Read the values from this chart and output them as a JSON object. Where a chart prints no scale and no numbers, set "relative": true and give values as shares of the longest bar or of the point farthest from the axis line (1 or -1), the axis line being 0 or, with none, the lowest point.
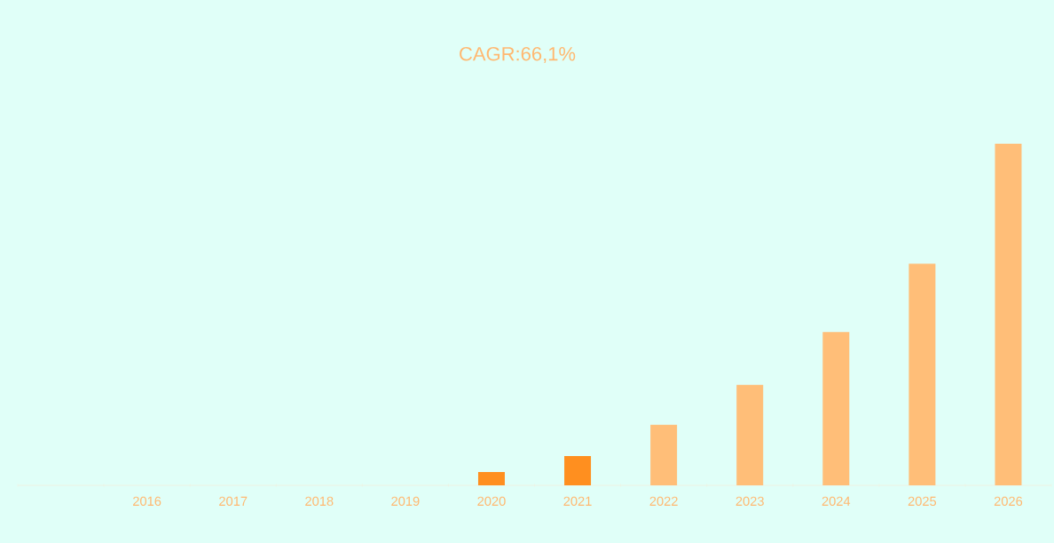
{
  "chart_data": {
    "type": "bar",
    "title": "CAGR:66,1%",
    "relative": true,
    "categories": [
      null,
      "2016",
      "2017",
      "2018",
      "2019",
      "2020",
      "2021",
      "2022",
      "2023",
      "2024",
      "2025",
      "2026"
    ],
    "values": [
      null,
      0,
      0,
      0,
      0,
      0.039,
      0.086,
      0.177,
      0.294,
      0.449,
      0.649,
      1
    ],
    "colors": [
      "#ffbe78",
      "#ffbe78",
      "#ffbe78",
      "#ffbe78",
      "#ffbe78",
      "#ff8f1f",
      "#ff8f1f",
      "#ffbe78",
      "#ffbe78",
      "#ffbe78",
      "#ffbe78",
      "#ffbe78"
    ]
  }
}
